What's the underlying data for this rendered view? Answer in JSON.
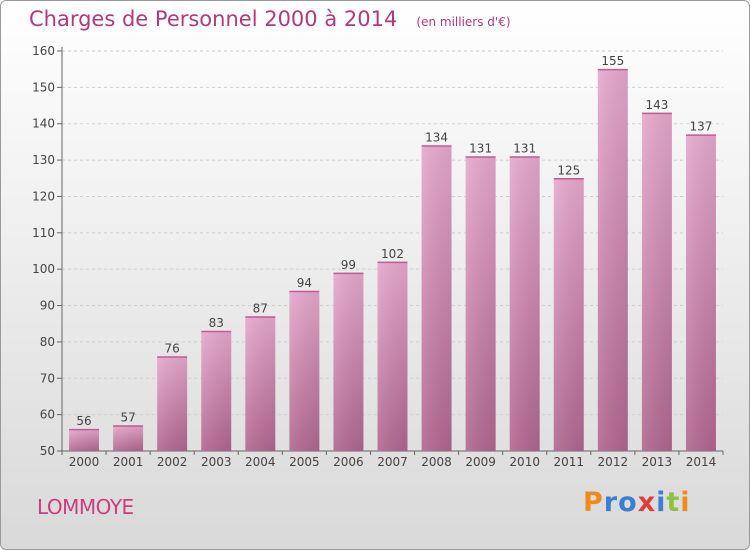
{
  "chart_data": {
    "type": "bar",
    "title": "Charges de Personnel 2000 à 2014",
    "subtitle": "(en milliers d'€)",
    "xlabel": "",
    "ylabel": "",
    "categories": [
      "2000",
      "2001",
      "2002",
      "2003",
      "2004",
      "2005",
      "2006",
      "2007",
      "2008",
      "2009",
      "2010",
      "2011",
      "2012",
      "2013",
      "2014"
    ],
    "values": [
      56,
      57,
      76,
      83,
      87,
      94,
      99,
      102,
      134,
      131,
      131,
      125,
      155,
      143,
      137
    ],
    "ylim": [
      50,
      160
    ],
    "yticks": [
      50,
      60,
      70,
      80,
      90,
      100,
      110,
      120,
      130,
      140,
      150,
      160
    ],
    "grid": true,
    "bar_color_top": "#e6a8cc",
    "bar_color_bottom": "#b0668f"
  },
  "footer": {
    "commune": "LOMMOYE",
    "logo": "Proxiti"
  },
  "colors": {
    "title": "#b03a7a",
    "commune": "#c8407f",
    "logo_letters": [
      "#f08a1c",
      "#3a7fd0",
      "#3a7fd0",
      "#e03c3c",
      "#3a7fd0",
      "#8ac43f",
      "#f08a1c"
    ]
  }
}
